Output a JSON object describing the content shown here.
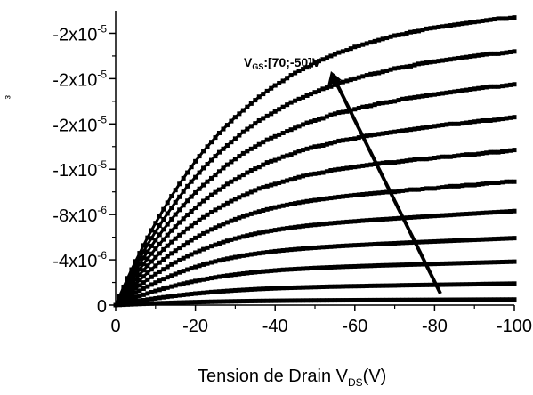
{
  "chart_data": {
    "type": "line",
    "xlabel": {
      "prefix": "Tension de Drain V",
      "sub": "DS",
      "suffix": "(V)"
    },
    "ylabel": "",
    "xlim": [
      0,
      -100
    ],
    "ylim": [
      0,
      -2.6e-05
    ],
    "x_ticks": [
      0,
      -20,
      -40,
      -60,
      -80,
      -100
    ],
    "x_tick_labels": [
      "0",
      "-20",
      "-40",
      "-60",
      "-80",
      "-100"
    ],
    "y_ticks": [
      0,
      -4e-06,
      -8e-06,
      -1.2e-05,
      -1.6e-05,
      -2e-05,
      -2.4e-05
    ],
    "y_tick_labels": [
      {
        "mantissa": "0",
        "exp": ""
      },
      {
        "mantissa": "-4x10",
        "exp": "-6"
      },
      {
        "mantissa": "-8x10",
        "exp": "-6"
      },
      {
        "mantissa": "-1x10",
        "exp": "-5"
      },
      {
        "mantissa": "-2x10",
        "exp": "-5"
      },
      {
        "mantissa": "-2x10",
        "exp": "-5"
      },
      {
        "mantissa": "-2x10",
        "exp": "-5"
      }
    ],
    "annotation": {
      "prefix": "V",
      "sub": "GS",
      "suffix": ":[70;-50]V"
    },
    "x": [
      0,
      -2,
      -4,
      -6,
      -8,
      -10,
      -12,
      -14,
      -16,
      -18,
      -20,
      -22,
      -24,
      -26,
      -28,
      -30,
      -32,
      -34,
      -36,
      -38,
      -40,
      -42,
      -44,
      -46,
      -48,
      -50,
      -52,
      -54,
      -56,
      -58,
      -60,
      -62,
      -64,
      -66,
      -68,
      -70,
      -72,
      -74,
      -76,
      -78,
      -80,
      -82,
      -84,
      -86,
      -88,
      -90,
      -92,
      -94,
      -96,
      -98,
      -100
    ],
    "series": [
      {
        "values": [
          0,
          -3.36e-08,
          -6.56e-08,
          -9.59e-08,
          -1.25e-07,
          -1.52e-07,
          -1.77e-07,
          -2.01e-07,
          -2.23e-07,
          -2.43e-07,
          -2.62e-07,
          -2.8e-07,
          -2.96e-07,
          -3.1e-07,
          -3.24e-07,
          -3.36e-07,
          -3.47e-07,
          -3.57e-07,
          -3.67e-07,
          -3.75e-07,
          -3.83e-07,
          -3.9e-07,
          -3.97e-07,
          -4.02e-07,
          -4.08e-07,
          -4.13e-07,
          -4.17e-07,
          -4.22e-07,
          -4.26e-07,
          -4.29e-07,
          -4.33e-07,
          -4.36e-07,
          -4.4e-07,
          -4.43e-07,
          -4.46e-07,
          -4.49e-07,
          -4.52e-07,
          -4.55e-07,
          -4.58e-07,
          -4.61e-07,
          -4.64e-07,
          -4.67e-07,
          -4.7e-07,
          -4.72e-07,
          -4.75e-07,
          -4.78e-07,
          -4.81e-07,
          -4.84e-07,
          -4.87e-07,
          -4.89e-07,
          -4.92e-07
        ]
      },
      {
        "values": [
          0,
          -1.33e-07,
          -2.58e-07,
          -3.77e-07,
          -4.89e-07,
          -5.93e-07,
          -6.91e-07,
          -7.82e-07,
          -8.67e-07,
          -9.45e-07,
          -1.02e-06,
          -1.08e-06,
          -1.15e-06,
          -1.2e-06,
          -1.25e-06,
          -1.3e-06,
          -1.34e-06,
          -1.38e-06,
          -1.42e-06,
          -1.45e-06,
          -1.48e-06,
          -1.51e-06,
          -1.53e-06,
          -1.55e-06,
          -1.57e-06,
          -1.59e-06,
          -1.61e-06,
          -1.63e-06,
          -1.64e-06,
          -1.66e-06,
          -1.67e-06,
          -1.68e-06,
          -1.7e-06,
          -1.71e-06,
          -1.72e-06,
          -1.73e-06,
          -1.75e-06,
          -1.76e-06,
          -1.77e-06,
          -1.78e-06,
          -1.79e-06,
          -1.8e-06,
          -1.81e-06,
          -1.82e-06,
          -1.83e-06,
          -1.84e-06,
          -1.86e-06,
          -1.87e-06,
          -1.88e-06,
          -1.89e-06,
          -1.9e-06
        ]
      },
      {
        "values": [
          0,
          -2.81e-07,
          -5.46e-07,
          -7.96e-07,
          -1.03e-06,
          -1.25e-06,
          -1.45e-06,
          -1.64e-06,
          -1.82e-06,
          -1.98e-06,
          -2.13e-06,
          -2.26e-06,
          -2.39e-06,
          -2.51e-06,
          -2.61e-06,
          -2.7e-06,
          -2.79e-06,
          -2.87e-06,
          -2.94e-06,
          -3e-06,
          -3.06e-06,
          -3.12e-06,
          -3.16e-06,
          -3.2e-06,
          -3.24e-06,
          -3.28e-06,
          -3.31e-06,
          -3.34e-06,
          -3.37e-06,
          -3.4e-06,
          -3.42e-06,
          -3.45e-06,
          -3.47e-06,
          -3.5e-06,
          -3.52e-06,
          -3.54e-06,
          -3.56e-06,
          -3.58e-06,
          -3.6e-06,
          -3.62e-06,
          -3.64e-06,
          -3.66e-06,
          -3.68e-06,
          -3.7e-06,
          -3.72e-06,
          -3.74e-06,
          -3.76e-06,
          -3.78e-06,
          -3.8e-06,
          -3.82e-06,
          -3.84e-06
        ]
      },
      {
        "values": [
          0,
          -4.49e-07,
          -8.71e-07,
          -1.27e-06,
          -1.64e-06,
          -1.99e-06,
          -2.31e-06,
          -2.61e-06,
          -2.89e-06,
          -3.14e-06,
          -3.37e-06,
          -3.58e-06,
          -3.77e-06,
          -3.95e-06,
          -4.1e-06,
          -4.24e-06,
          -4.37e-06,
          -4.48e-06,
          -4.58e-06,
          -4.67e-06,
          -4.76e-06,
          -4.83e-06,
          -4.9e-06,
          -4.96e-06,
          -5.02e-06,
          -5.07e-06,
          -5.12e-06,
          -5.16e-06,
          -5.21e-06,
          -5.25e-06,
          -5.29e-06,
          -5.32e-06,
          -5.36e-06,
          -5.4e-06,
          -5.43e-06,
          -5.46e-06,
          -5.5e-06,
          -5.53e-06,
          -5.56e-06,
          -5.59e-06,
          -5.62e-06,
          -5.65e-06,
          -5.68e-06,
          -5.71e-06,
          -5.74e-06,
          -5.77e-06,
          -5.8e-06,
          -5.83e-06,
          -5.86e-06,
          -5.89e-06,
          -5.92e-06
        ]
      },
      {
        "values": [
          0,
          -6.15e-07,
          -1.19e-06,
          -1.74e-06,
          -2.25e-06,
          -2.73e-06,
          -3.17e-06,
          -3.59e-06,
          -3.97e-06,
          -4.32e-06,
          -4.64e-06,
          -4.94e-06,
          -5.21e-06,
          -5.45e-06,
          -5.68e-06,
          -5.88e-06,
          -6.06e-06,
          -6.23e-06,
          -6.38e-06,
          -6.51e-06,
          -6.63e-06,
          -6.74e-06,
          -6.84e-06,
          -6.93e-06,
          -7.02e-06,
          -7.09e-06,
          -7.16e-06,
          -7.23e-06,
          -7.29e-06,
          -7.35e-06,
          -7.4e-06,
          -7.46e-06,
          -7.51e-06,
          -7.56e-06,
          -7.6e-06,
          -7.65e-06,
          -7.7e-06,
          -7.74e-06,
          -7.79e-06,
          -7.83e-06,
          -7.88e-06,
          -7.92e-06,
          -7.96e-06,
          -8.01e-06,
          -8.05e-06,
          -8.09e-06,
          -8.14e-06,
          -8.18e-06,
          -8.22e-06,
          -8.26e-06,
          -8.31e-06
        ]
      },
      {
        "values": [
          0,
          -7.81e-07,
          -1.52e-06,
          -2.21e-06,
          -2.86e-06,
          -3.47e-06,
          -4.04e-06,
          -4.57e-06,
          -5.06e-06,
          -5.52e-06,
          -5.94e-06,
          -6.33e-06,
          -6.69e-06,
          -7.01e-06,
          -7.31e-06,
          -7.59e-06,
          -7.84e-06,
          -8.06e-06,
          -8.27e-06,
          -8.46e-06,
          -8.63e-06,
          -8.78e-06,
          -8.92e-06,
          -9.05e-06,
          -9.17e-06,
          -9.27e-06,
          -9.37e-06,
          -9.46e-06,
          -9.55e-06,
          -9.63e-06,
          -9.71e-06,
          -9.78e-06,
          -9.85e-06,
          -9.91e-06,
          -9.98e-06,
          -1e-05,
          -1.01e-05,
          -1.02e-05,
          -1.02e-05,
          -1.03e-05,
          -1.03e-05,
          -1.04e-05,
          -1.05e-05,
          -1.05e-05,
          -1.06e-05,
          -1.06e-05,
          -1.07e-05,
          -1.08e-05,
          -1.08e-05,
          -1.09e-05,
          -1.09e-05
        ]
      },
      {
        "values": [
          0,
          -9.48e-07,
          -1.84e-06,
          -2.69e-06,
          -3.48e-06,
          -4.22e-06,
          -4.92e-06,
          -5.57e-06,
          -6.18e-06,
          -6.74e-06,
          -7.27e-06,
          -7.76e-06,
          -8.21e-06,
          -8.62e-06,
          -9.01e-06,
          -9.36e-06,
          -9.68e-06,
          -9.98e-06,
          -1.03e-05,
          -1.05e-05,
          -1.07e-05,
          -1.09e-05,
          -1.11e-05,
          -1.13e-05,
          -1.15e-05,
          -1.16e-05,
          -1.17e-05,
          -1.19e-05,
          -1.2e-05,
          -1.21e-05,
          -1.22e-05,
          -1.23e-05,
          -1.24e-05,
          -1.25e-05,
          -1.26e-05,
          -1.26e-05,
          -1.27e-05,
          -1.28e-05,
          -1.29e-05,
          -1.29e-05,
          -1.3e-05,
          -1.31e-05,
          -1.31e-05,
          -1.32e-05,
          -1.33e-05,
          -1.33e-05,
          -1.34e-05,
          -1.35e-05,
          -1.35e-05,
          -1.36e-05,
          -1.37e-05
        ]
      },
      {
        "values": [
          0,
          -1.11e-06,
          -2.17e-06,
          -3.16e-06,
          -4.1e-06,
          -4.98e-06,
          -5.8e-06,
          -6.58e-06,
          -7.3e-06,
          -7.97e-06,
          -8.6e-06,
          -9.19e-06,
          -9.73e-06,
          -1.02e-05,
          -1.07e-05,
          -1.11e-05,
          -1.15e-05,
          -1.19e-05,
          -1.22e-05,
          -1.26e-05,
          -1.28e-05,
          -1.31e-05,
          -1.33e-05,
          -1.36e-05,
          -1.38e-05,
          -1.4e-05,
          -1.41e-05,
          -1.43e-05,
          -1.45e-05,
          -1.46e-05,
          -1.47e-05,
          -1.49e-05,
          -1.5e-05,
          -1.51e-05,
          -1.52e-05,
          -1.53e-05,
          -1.54e-05,
          -1.55e-05,
          -1.56e-05,
          -1.57e-05,
          -1.58e-05,
          -1.59e-05,
          -1.6e-05,
          -1.6e-05,
          -1.61e-05,
          -1.62e-05,
          -1.63e-05,
          -1.63e-05,
          -1.64e-05,
          -1.65e-05,
          -1.66e-05
        ]
      },
      {
        "values": [
          0,
          -1.28e-06,
          -2.49e-06,
          -3.64e-06,
          -4.72e-06,
          -5.74e-06,
          -6.69e-06,
          -7.59e-06,
          -8.42e-06,
          -9.21e-06,
          -9.94e-06,
          -1.06e-05,
          -1.12e-05,
          -1.18e-05,
          -1.24e-05,
          -1.29e-05,
          -1.34e-05,
          -1.38e-05,
          -1.42e-05,
          -1.46e-05,
          -1.49e-05,
          -1.52e-05,
          -1.55e-05,
          -1.58e-05,
          -1.61e-05,
          -1.63e-05,
          -1.65e-05,
          -1.68e-05,
          -1.7e-05,
          -1.71e-05,
          -1.73e-05,
          -1.75e-05,
          -1.76e-05,
          -1.78e-05,
          -1.79e-05,
          -1.8e-05,
          -1.82e-05,
          -1.83e-05,
          -1.84e-05,
          -1.85e-05,
          -1.86e-05,
          -1.87e-05,
          -1.88e-05,
          -1.89e-05,
          -1.9e-05,
          -1.91e-05,
          -1.92e-05,
          -1.93e-05,
          -1.93e-05,
          -1.94e-05,
          -1.95e-05
        ]
      },
      {
        "values": [
          0,
          -1.44e-06,
          -2.81e-06,
          -4.11e-06,
          -5.34e-06,
          -6.49e-06,
          -7.58e-06,
          -8.6e-06,
          -9.56e-06,
          -1.05e-05,
          -1.13e-05,
          -1.21e-05,
          -1.28e-05,
          -1.35e-05,
          -1.41e-05,
          -1.47e-05,
          -1.53e-05,
          -1.58e-05,
          -1.63e-05,
          -1.67e-05,
          -1.71e-05,
          -1.75e-05,
          -1.79e-05,
          -1.82e-05,
          -1.85e-05,
          -1.88e-05,
          -1.91e-05,
          -1.93e-05,
          -1.96e-05,
          -1.98e-05,
          -2e-05,
          -2.02e-05,
          -2.04e-05,
          -2.05e-05,
          -2.07e-05,
          -2.09e-05,
          -2.1e-05,
          -2.11e-05,
          -2.13e-05,
          -2.14e-05,
          -2.15e-05,
          -2.16e-05,
          -2.17e-05,
          -2.18e-05,
          -2.19e-05,
          -2.2e-05,
          -2.21e-05,
          -2.22e-05,
          -2.22e-05,
          -2.23e-05,
          -2.24e-05
        ]
      },
      {
        "values": [
          0,
          -1.61e-06,
          -3.14e-06,
          -4.59e-06,
          -5.96e-06,
          -7.25e-06,
          -8.47e-06,
          -9.62e-06,
          -1.07e-05,
          -1.17e-05,
          -1.27e-05,
          -1.36e-05,
          -1.44e-05,
          -1.52e-05,
          -1.59e-05,
          -1.66e-05,
          -1.72e-05,
          -1.78e-05,
          -1.84e-05,
          -1.89e-05,
          -1.94e-05,
          -1.98e-05,
          -2.03e-05,
          -2.07e-05,
          -2.1e-05,
          -2.14e-05,
          -2.17e-05,
          -2.2e-05,
          -2.23e-05,
          -2.25e-05,
          -2.28e-05,
          -2.3e-05,
          -2.32e-05,
          -2.34e-05,
          -2.36e-05,
          -2.38e-05,
          -2.39e-05,
          -2.41e-05,
          -2.42e-05,
          -2.44e-05,
          -2.45e-05,
          -2.46e-05,
          -2.47e-05,
          -2.48e-05,
          -2.49e-05,
          -2.5e-05,
          -2.51e-05,
          -2.52e-05,
          -2.53e-05,
          -2.53e-05,
          -2.54e-05
        ]
      }
    ]
  },
  "clipped_ylabel_fragment": "ε"
}
